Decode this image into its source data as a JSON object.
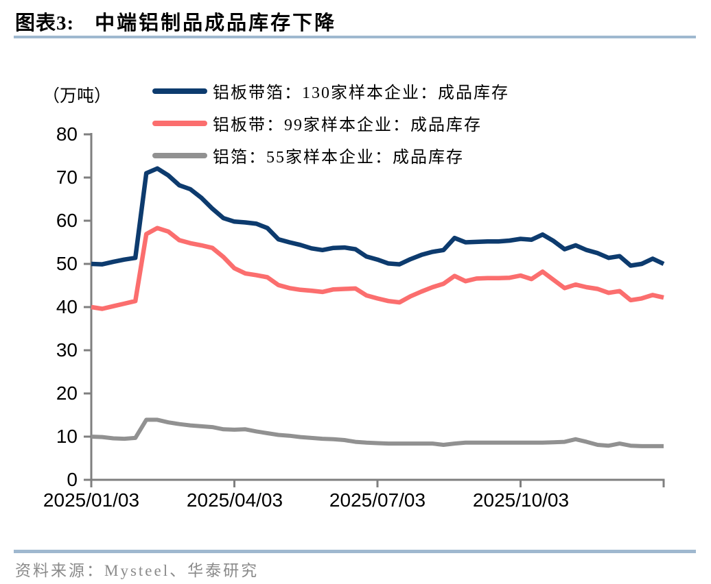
{
  "header": {
    "label": "图表3:",
    "title": "中端铝制品成品库存下降"
  },
  "colors": {
    "rule": "#9fb8cf",
    "axis": "#7f7f7f",
    "navy": "#0d3b6e",
    "coral": "#fb6e6e",
    "gray": "#919191"
  },
  "chart_data": {
    "type": "line",
    "title": "中端铝制品成品库存下降",
    "unit_label": "（万吨）",
    "grid": false,
    "legend_position": "top-left",
    "ylim": [
      0,
      80
    ],
    "y_ticks": [
      0,
      10,
      20,
      30,
      40,
      50,
      60,
      70,
      80
    ],
    "n_points": 53,
    "x_start_label": "2025/01/03",
    "x_tick_labels": [
      "2025/01/03",
      "2025/04/03",
      "2025/07/03",
      "2025/10/03"
    ],
    "x_tick_indices": [
      0,
      13,
      26,
      39
    ],
    "series": [
      {
        "name": "铝板带箔：130家样本企业：成品库存",
        "color": "#0d3b6e",
        "values": [
          50.0,
          49.9,
          50.5,
          51.0,
          51.4,
          71.0,
          72.1,
          70.5,
          68.2,
          67.3,
          65.3,
          62.8,
          60.6,
          59.8,
          59.6,
          59.3,
          58.3,
          55.7,
          55.0,
          54.4,
          53.6,
          53.2,
          53.7,
          53.8,
          53.4,
          51.7,
          51.0,
          50.1,
          49.9,
          51.1,
          52.1,
          52.8,
          53.2,
          56.0,
          55.0,
          55.1,
          55.2,
          55.2,
          55.4,
          55.8,
          55.6,
          56.8,
          55.3,
          53.4,
          54.3,
          53.2,
          52.5,
          51.4,
          51.8,
          49.6,
          50.0,
          51.2,
          50.0
        ]
      },
      {
        "name": "铝板带：99家样本企业：成品库存",
        "color": "#fb6e6e",
        "values": [
          40.0,
          39.6,
          40.2,
          40.8,
          41.4,
          56.9,
          58.3,
          57.5,
          55.5,
          54.8,
          54.3,
          53.7,
          51.6,
          49.0,
          47.8,
          47.4,
          46.9,
          45.1,
          44.4,
          44.0,
          43.8,
          43.5,
          44.1,
          44.2,
          44.3,
          42.7,
          42.0,
          41.4,
          41.1,
          42.5,
          43.6,
          44.6,
          45.4,
          47.2,
          46.0,
          46.6,
          46.7,
          46.7,
          46.8,
          47.3,
          46.5,
          48.2,
          46.3,
          44.4,
          45.2,
          44.6,
          44.2,
          43.3,
          43.7,
          41.6,
          42.0,
          42.8,
          42.2
        ]
      },
      {
        "name": "铝箔：55家样本企业：成品库存",
        "color": "#919191",
        "values": [
          10.0,
          9.9,
          9.6,
          9.5,
          9.7,
          13.9,
          13.9,
          13.3,
          12.9,
          12.6,
          12.4,
          12.2,
          11.7,
          11.6,
          11.7,
          11.2,
          10.8,
          10.4,
          10.2,
          9.9,
          9.7,
          9.5,
          9.4,
          9.2,
          8.8,
          8.6,
          8.5,
          8.4,
          8.4,
          8.4,
          8.4,
          8.4,
          8.1,
          8.4,
          8.6,
          8.6,
          8.6,
          8.6,
          8.6,
          8.6,
          8.6,
          8.6,
          8.7,
          8.8,
          9.4,
          8.8,
          8.1,
          7.9,
          8.4,
          7.9,
          7.8,
          7.8,
          7.8
        ]
      }
    ]
  },
  "footer": {
    "source": "资料来源：Mysteel、华泰研究"
  }
}
